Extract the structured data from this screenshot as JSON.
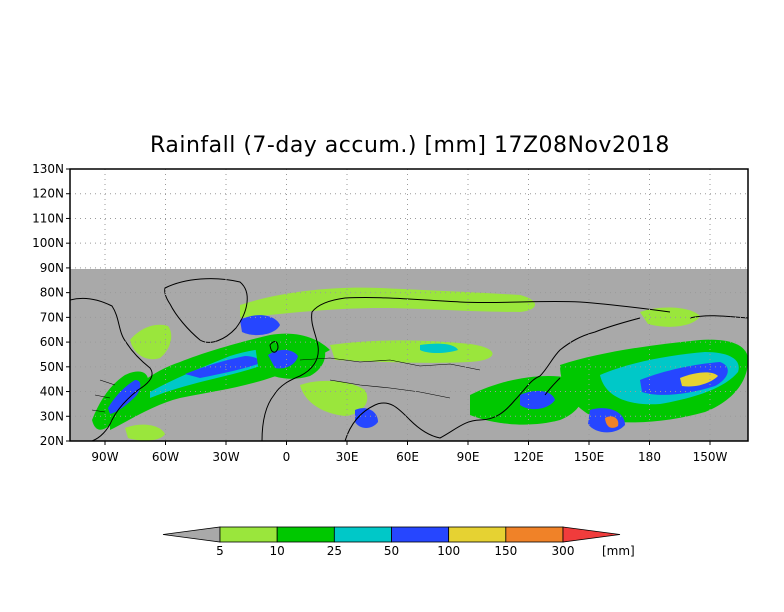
{
  "title": "Rainfall (7-day accum.) [mm] 17Z08Nov2018",
  "colors": {
    "land": "#a9a9a9",
    "frame": "#000000",
    "grid": "#9a9a9a",
    "coast": "#000000"
  },
  "map": {
    "lat_labels": [
      "130N",
      "120N",
      "110N",
      "100N",
      "90N",
      "80N",
      "70N",
      "60N",
      "50N",
      "40N",
      "30N",
      "20N"
    ],
    "lon_labels": [
      "90W",
      "60W",
      "30W",
      "0",
      "30E",
      "60E",
      "90E",
      "120E",
      "150E",
      "180",
      "150W"
    ],
    "data_extent": {
      "lat_max": 90,
      "lat_min": 20
    }
  },
  "legend": {
    "unit": "[mm]",
    "thresholds": [
      "5",
      "10",
      "25",
      "50",
      "100",
      "150",
      "300"
    ],
    "colors": [
      "#a9a9a9",
      "#9ae63c",
      "#00c800",
      "#00c8c8",
      "#2646ff",
      "#e6d232",
      "#f08228",
      "#f03c3c"
    ]
  }
}
